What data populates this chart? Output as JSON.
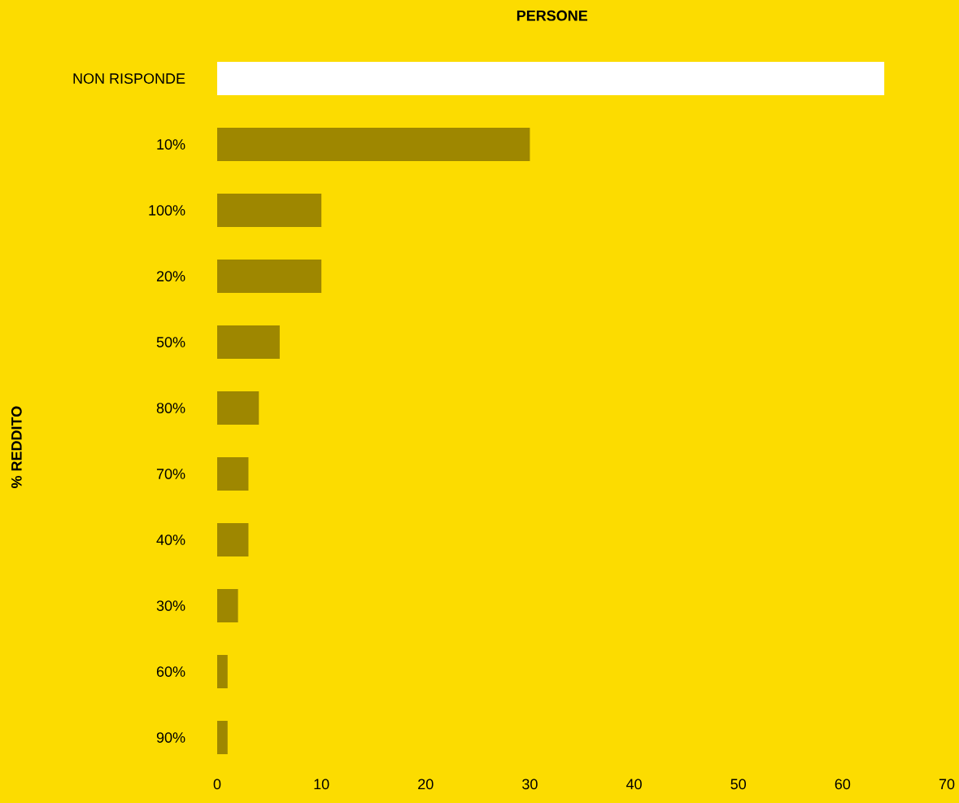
{
  "chart_data": {
    "type": "bar",
    "orientation": "horizontal",
    "title": "PERSONE",
    "ylabel": "% REDDITO",
    "categories": [
      "NON RISPONDE",
      "10%",
      "100%",
      "20%",
      "50%",
      "80%",
      "70%",
      "40%",
      "30%",
      "60%",
      "90%"
    ],
    "values": [
      64,
      30,
      10,
      10,
      6,
      4,
      3,
      3,
      2,
      1,
      1
    ],
    "colors": [
      "#ffffff",
      "#9e8700",
      "#9e8700",
      "#9e8700",
      "#9e8700",
      "#9e8700",
      "#9e8700",
      "#9e8700",
      "#9e8700",
      "#9e8700",
      "#9e8700"
    ],
    "xlim": [
      0,
      70
    ],
    "xticks": [
      0,
      10,
      20,
      30,
      40,
      50,
      60,
      70
    ]
  }
}
